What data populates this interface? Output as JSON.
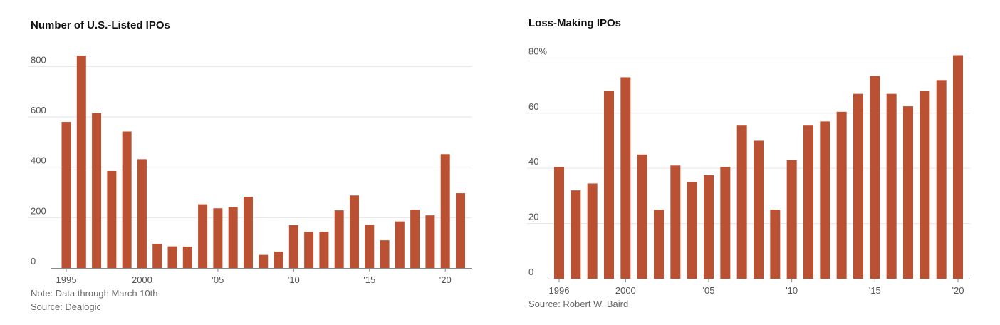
{
  "colors": {
    "bar": "#bb5133",
    "grid": "#e6e6e6",
    "axis": "#888888"
  },
  "chart_data": [
    {
      "type": "bar",
      "title": "Number of U.S.-Listed IPOs",
      "note": "Note: Data through March 10th",
      "source": "Source: Dealogic",
      "xlabel": "",
      "ylabel": "",
      "categories": [
        "1995",
        "1996",
        "1997",
        "1998",
        "1999",
        "2000",
        "2001",
        "2002",
        "2003",
        "2004",
        "2005",
        "2006",
        "2007",
        "2008",
        "2009",
        "2010",
        "2011",
        "2012",
        "2013",
        "2014",
        "2015",
        "2016",
        "2017",
        "2018",
        "2019",
        "2020",
        "2021"
      ],
      "values": [
        580,
        843,
        615,
        385,
        542,
        432,
        96,
        86,
        85,
        253,
        237,
        242,
        283,
        52,
        65,
        170,
        144,
        144,
        229,
        288,
        172,
        110,
        185,
        232,
        209,
        452,
        297
      ],
      "ylim": [
        0,
        900
      ],
      "yticks": [
        0,
        200,
        400,
        600,
        800
      ],
      "ytick_labels": [
        "0",
        "200",
        "400",
        "600",
        "800"
      ],
      "xtick_labels": [
        {
          "at": "1995",
          "label": "1995"
        },
        {
          "at": "2000",
          "label": "2000"
        },
        {
          "at": "2005",
          "label": "'05"
        },
        {
          "at": "2010",
          "label": "'10"
        },
        {
          "at": "2015",
          "label": "'15"
        },
        {
          "at": "2020",
          "label": "'20"
        }
      ],
      "grid": true
    },
    {
      "type": "bar",
      "title": "Loss-Making IPOs",
      "note": "",
      "source": "Source: Robert W. Baird",
      "xlabel": "",
      "ylabel": "",
      "categories": [
        "1996",
        "1997",
        "1998",
        "1999",
        "2000",
        "2001",
        "2002",
        "2003",
        "2004",
        "2005",
        "2006",
        "2007",
        "2008",
        "2009",
        "2010",
        "2011",
        "2012",
        "2013",
        "2014",
        "2015",
        "2016",
        "2017",
        "2018",
        "2019",
        "2020"
      ],
      "values": [
        40.5,
        32,
        34.5,
        68,
        73,
        45,
        25,
        41,
        35,
        37.5,
        40.5,
        55.5,
        50,
        25,
        43,
        55.5,
        57,
        60.5,
        67,
        73.5,
        67,
        62.5,
        68,
        72,
        81
      ],
      "ylim": [
        0,
        85
      ],
      "yticks": [
        0,
        20,
        40,
        60,
        80
      ],
      "ytick_labels": [
        "0",
        "20",
        "40",
        "60",
        "80%"
      ],
      "xtick_labels": [
        {
          "at": "1996",
          "label": "1996"
        },
        {
          "at": "2000",
          "label": "2000"
        },
        {
          "at": "2005",
          "label": "'05"
        },
        {
          "at": "2010",
          "label": "'10"
        },
        {
          "at": "2015",
          "label": "'15"
        },
        {
          "at": "2020",
          "label": "'20"
        }
      ],
      "grid": true
    }
  ]
}
